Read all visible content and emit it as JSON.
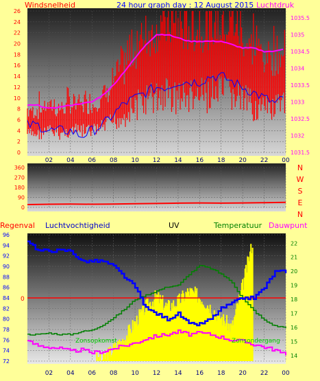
{
  "page": {
    "title": "24 hour graph day : 12 August 2015",
    "colors": {
      "background": "#ffff99",
      "wind": "#ff0000",
      "gust_line": "#0000ff",
      "pressure": "#ff00ff",
      "humidity": "#0000ff",
      "uv": "#ffff00",
      "temperature": "#008000",
      "dewpoint": "#ff00ff",
      "rain": "#ff0000"
    }
  },
  "x_ticks": [
    "02",
    "04",
    "06",
    "08",
    "10",
    "12",
    "14",
    "16",
    "18",
    "20",
    "22",
    "00"
  ],
  "chart_data": [
    {
      "type": "line",
      "title": "Windsnelheid / Luchtdruk",
      "ylabel_left": "Windsnelheid",
      "ylabel_right": "Luchtdruk",
      "yticks_left": [
        "26",
        "24",
        "22",
        "20",
        "18",
        "16",
        "14",
        "12",
        "10",
        "8",
        "6",
        "4",
        "2",
        "0"
      ],
      "yticks_right": [
        "1035.5",
        "1035",
        "1034.5",
        "1034",
        "1033.5",
        "1033",
        "1032.5",
        "1032",
        "1031.5"
      ],
      "ylim_left": [
        0,
        26
      ],
      "ylim_right": [
        1031.5,
        1035.7
      ],
      "x": [
        0,
        1,
        2,
        3,
        4,
        5,
        6,
        7,
        8,
        9,
        10,
        11,
        12,
        13,
        14,
        15,
        16,
        17,
        18,
        19,
        20,
        21,
        22,
        23,
        24
      ],
      "series": [
        {
          "name": "Windsnelheid",
          "color": "#ff0000",
          "values": [
            6,
            6,
            7,
            6,
            7,
            7,
            7,
            8,
            10,
            12,
            15,
            17,
            18,
            19,
            18,
            18,
            18,
            19,
            19,
            19,
            17,
            15,
            14,
            14,
            15
          ]
        },
        {
          "name": "",
          "color": "#0000ff",
          "values": [
            5,
            5,
            4,
            4,
            4,
            3,
            4,
            5,
            7,
            9,
            10,
            11,
            12,
            12,
            13,
            13,
            13,
            14,
            14,
            13,
            12,
            11,
            10,
            9,
            10
          ]
        },
        {
          "name": "Luchtdruk",
          "color": "#ff00ff",
          "axis": "right",
          "values": [
            1032.9,
            1032.9,
            1032.8,
            1032.85,
            1032.9,
            1032.95,
            1033.0,
            1033.2,
            1033.5,
            1033.9,
            1034.3,
            1034.7,
            1035.0,
            1035.0,
            1034.9,
            1034.8,
            1034.8,
            1034.8,
            1034.8,
            1034.7,
            1034.6,
            1034.6,
            1034.5,
            1034.5,
            1034.6
          ]
        }
      ]
    },
    {
      "type": "line",
      "ylabel_right": "N W S E N",
      "yticks_left": [
        "360",
        "270",
        "180",
        "90",
        "0"
      ],
      "ylim": [
        0,
        360
      ],
      "compass": [
        "N",
        "W",
        "S",
        "E",
        "N"
      ],
      "x": [
        0,
        2,
        4,
        6,
        8,
        10,
        12,
        14,
        16,
        18,
        20,
        22,
        24
      ],
      "series": [
        {
          "name": "",
          "color": "#ff0000",
          "values": [
            25,
            28,
            30,
            28,
            30,
            33,
            35,
            38,
            40,
            38,
            40,
            42,
            45
          ]
        }
      ]
    },
    {
      "type": "line",
      "legend": [
        "Regenval",
        "Luchtvochtigheid",
        "UV",
        "Temperatuur",
        "Dauwpunt"
      ],
      "annotations": [
        "Zonsopkomst",
        "Zonsondergang"
      ],
      "yticks_left": [
        "96",
        "94",
        "92",
        "90",
        "88",
        "86",
        "84",
        "82",
        "80",
        "78",
        "76",
        "74",
        "72"
      ],
      "yticks_right": [
        "22",
        "21",
        "20",
        "19",
        "18",
        "17",
        "16",
        "15",
        "14"
      ],
      "rain_marker": "0",
      "ylim_left": [
        72,
        96
      ],
      "ylim_right": [
        13.6,
        22.6
      ],
      "x": [
        0,
        1,
        2,
        3,
        4,
        5,
        6,
        7,
        8,
        9,
        10,
        11,
        12,
        13,
        14,
        15,
        16,
        17,
        18,
        19,
        20,
        21,
        22,
        23,
        24
      ],
      "series": [
        {
          "name": "Luchtvochtigheid",
          "color": "#0000ff",
          "values": [
            95,
            93,
            93,
            93,
            93,
            91,
            91,
            91,
            90,
            88,
            86,
            82,
            81,
            80,
            81,
            79,
            79,
            80,
            82,
            83,
            84,
            84,
            86,
            89,
            89
          ]
        },
        {
          "name": "Temperatuur",
          "color": "#008000",
          "axis": "right",
          "values": [
            15.5,
            15.5,
            15.6,
            15.5,
            15.5,
            15.7,
            15.8,
            16.2,
            16.7,
            17.3,
            18.0,
            18.3,
            18.6,
            18.9,
            19.0,
            19.8,
            20.4,
            20.2,
            19.8,
            19.2,
            18.0,
            17.2,
            16.5,
            16.1,
            16.0
          ]
        },
        {
          "name": "Dauwpunt",
          "color": "#ff00ff",
          "axis": "right",
          "values": [
            15.0,
            14.7,
            14.6,
            14.5,
            14.3,
            14.4,
            14.2,
            14.3,
            14.5,
            14.7,
            14.9,
            15.2,
            15.4,
            15.5,
            15.7,
            15.5,
            15.6,
            15.5,
            15.3,
            15.1,
            15.0,
            14.8,
            14.6,
            14.4,
            14.0
          ]
        },
        {
          "name": "UV",
          "color": "#ffff00",
          "values": [
            72,
            72,
            72,
            72,
            72,
            72,
            72,
            72,
            74,
            76,
            79,
            82,
            84,
            82,
            83,
            85,
            84,
            82,
            80,
            78,
            86,
            95,
            72,
            72,
            72
          ]
        }
      ]
    }
  ]
}
